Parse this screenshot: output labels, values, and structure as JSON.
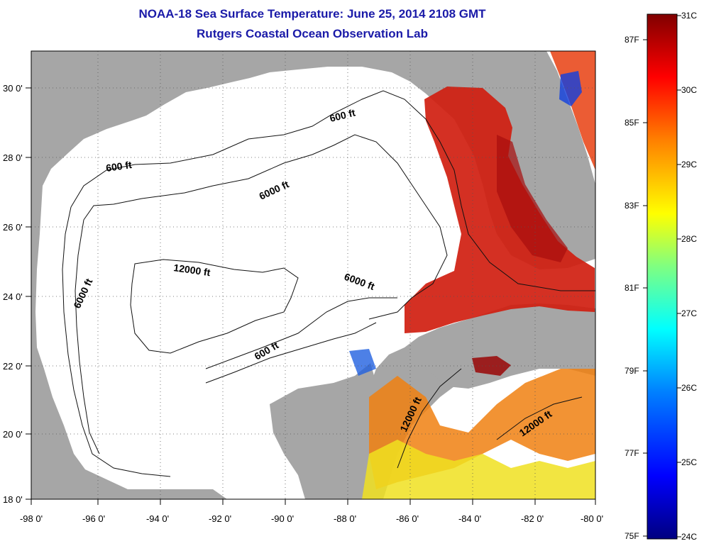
{
  "header": {
    "title": "NOAA-18 Sea Surface Temperature:  June 25, 2014 2108 GMT",
    "subtitle": "Rutgers Coastal Ocean Observation Lab"
  },
  "map": {
    "lon_ticks": [
      "-98 0'",
      "-96 0'",
      "-94 0'",
      "-92 0'",
      "-90 0'",
      "-88 0'",
      "-86 0'",
      "-84 0'",
      "-82 0'",
      "-80 0'"
    ],
    "lat_ticks": [
      "30 0'",
      "28 0'",
      "26 0'",
      "24 0'",
      "22 0'",
      "20 0'",
      "18 0'"
    ],
    "contour_labels": [
      "600 ft",
      "600 ft",
      "6000 ft",
      "12000 ft",
      "6000 ft",
      "6000 ft",
      "600 ft",
      "12000 ft",
      "12000 ft"
    ]
  },
  "colorbar": {
    "celsius": [
      "31C",
      "30C",
      "29C",
      "28C",
      "27C",
      "26C",
      "25C",
      "24C"
    ],
    "fahrenheit": [
      "87F",
      "85F",
      "83F",
      "81F",
      "79F",
      "77F",
      "75F"
    ],
    "colors": [
      "#000080",
      "#0000ff",
      "#0080ff",
      "#00ffff",
      "#80ff80",
      "#ffff00",
      "#ff8000",
      "#ff0000",
      "#800000"
    ]
  },
  "colors": {
    "land": "#a6a6a6",
    "water": "#ffffff",
    "title": "#1a1aa8"
  }
}
